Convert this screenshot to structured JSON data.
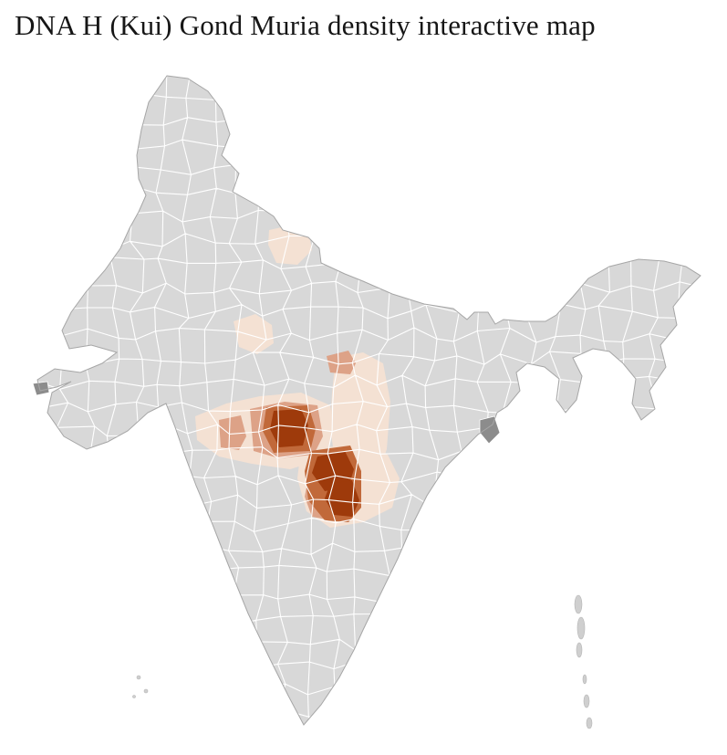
{
  "title": "DNA H (Kui) Gond Muria density interactive map",
  "map": {
    "subject": "district-level density choropleth of India",
    "colors": {
      "base": "#d8d8d8",
      "district_border": "#ffffff",
      "outline": "#a6a6a6",
      "neighbor_patch": "#8c8c8c",
      "island": "#cfcfcf",
      "density_low": "#f4e1d3",
      "density_medium": "#dda287",
      "density_high": "#c1693a",
      "density_very_high": "#9e3a0b"
    },
    "density_levels": [
      "none",
      "low",
      "medium",
      "high",
      "very high"
    ]
  }
}
